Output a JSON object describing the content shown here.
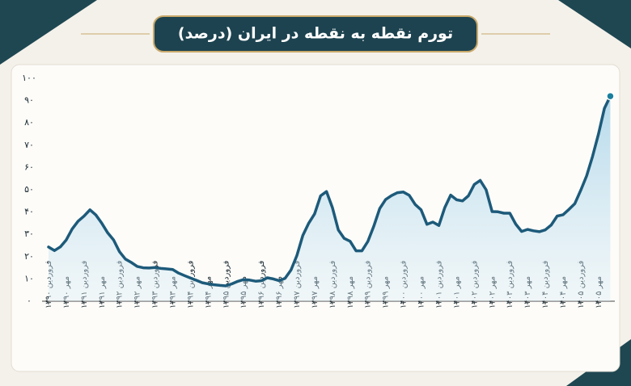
{
  "chart_data": {
    "type": "line",
    "title": "تورم نقطه به نقطه در ایران (درصد)",
    "categories": [
      "فروردین ۱۳۹۰",
      null,
      null,
      "مهر ۱۳۹۰",
      null,
      null,
      "فروردین ۱۳۹۱",
      null,
      null,
      "مهر ۱۳۹۱",
      null,
      null,
      "فروردین ۱۳۹۲",
      null,
      null,
      "مهر ۱۳۹۲",
      null,
      null,
      "فروردین ۱۳۹۳",
      null,
      null,
      "مهر ۱۳۹۳",
      null,
      null,
      "فروردین ۱۳۹۴",
      null,
      null,
      "مهر ۱۳۹۴",
      null,
      null,
      "فروردین ۱۳۹۵",
      null,
      null,
      "مهر ۱۳۹۵",
      null,
      null,
      "فروردین ۱۳۹۶",
      null,
      null,
      "مهر ۱۳۹۶",
      null,
      null,
      "فروردین ۱۳۹۷",
      null,
      null,
      "مهر ۱۳۹۷",
      null,
      null,
      "فروردین ۱۳۹۸",
      null,
      null,
      "مهر ۱۳۹۸",
      null,
      null,
      "فروردین ۱۳۹۹",
      null,
      null,
      "مهر ۱۳۹۹",
      null,
      null,
      "فروردین ۱۴۰۰",
      null,
      null,
      "مهر ۱۴۰۰",
      null,
      null,
      "فروردین ۱۴۰۱",
      null,
      null,
      "مهر ۱۴۰۱",
      null,
      null,
      "فروردین ۱۴۰۲",
      null,
      null,
      "مهر ۱۴۰۲",
      null,
      null,
      "فروردین ۱۴۰۳",
      null,
      null,
      "مهر ۱۴۰۳",
      null,
      null,
      "فروردین ۱۴۰۴",
      null,
      null,
      "مهر ۱۴۰۴",
      null,
      null,
      "فروردین ۱۴۰۵",
      null,
      null,
      "مهر ۱۴۰۵",
      null,
      null
    ],
    "values": [
      24.3,
      22.7,
      24.4,
      27.5,
      32.4,
      35.9,
      38.2,
      41,
      38.7,
      35,
      30.7,
      27.5,
      22.2,
      18.9,
      17.4,
      15.6,
      15,
      14.9,
      15.1,
      14.7,
      14.5,
      14.2,
      12.6,
      11.5,
      10.4,
      9.4,
      8.3,
      7.8,
      7.4,
      7.1,
      6.9,
      7.8,
      8.9,
      9.7,
      9.5,
      9,
      9.2,
      10.5,
      10,
      9.2,
      10.3,
      14,
      20.5,
      29.5,
      35,
      39.2,
      47.3,
      49.2,
      42,
      32,
      28.2,
      26.9,
      22.6,
      22.6,
      26.8,
      33.6,
      41.6,
      45.6,
      47.4,
      48.7,
      49,
      47.5,
      43.4,
      41,
      34.5,
      35.5,
      34,
      42,
      47.6,
      45.5,
      45,
      47.3,
      52.4,
      54.2,
      50,
      40.2,
      40.1,
      39.5,
      39.5,
      34.6,
      31.3,
      32.2,
      31.6,
      31.2,
      32,
      34.2,
      38.2,
      38.8,
      41.2,
      43.8,
      49.8,
      56.3,
      65,
      75,
      86.5,
      92
    ],
    "color": "#1d5a7a",
    "ylim": [
      0,
      100
    ],
    "yticks": [
      {
        "value": 0,
        "label": "۰"
      },
      {
        "value": 10,
        "label": "۱۰"
      },
      {
        "value": 20,
        "label": "۲۰"
      },
      {
        "value": 30,
        "label": "۳۰"
      },
      {
        "value": 40,
        "label": "۴۰"
      },
      {
        "value": 50,
        "label": "۵۰"
      },
      {
        "value": 60,
        "label": "۶۰"
      },
      {
        "value": 70,
        "label": "۷۰"
      },
      {
        "value": 80,
        "label": "۸۰"
      },
      {
        "value": 90,
        "label": "۹۰"
      },
      {
        "value": 100,
        "label": "۱۰۰"
      }
    ],
    "grid": false
  }
}
